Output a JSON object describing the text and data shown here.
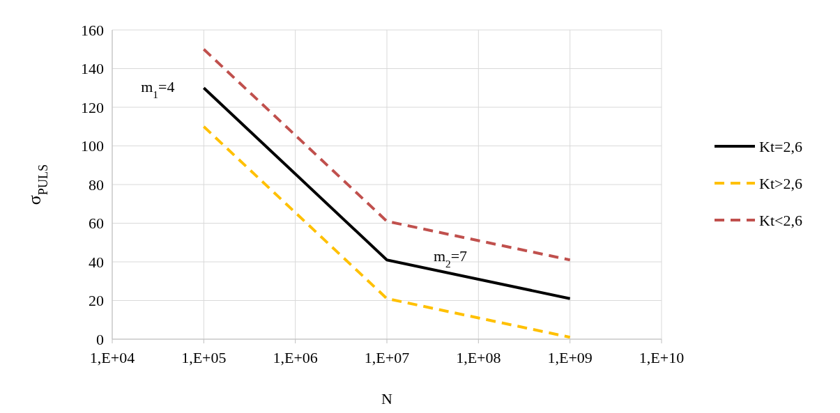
{
  "chart_data": {
    "type": "line",
    "xlabel": "N",
    "ylabel": "σ$_{PULS}$",
    "categories": [
      "1,E+04",
      "1,E+05",
      "1,E+06",
      "1,E+07",
      "1,E+08",
      "1,E+09",
      "1,E+10"
    ],
    "ylim": [
      0,
      160
    ],
    "yticks": [
      0,
      20,
      40,
      60,
      80,
      100,
      120,
      140,
      160
    ],
    "grid": true,
    "legend": "right",
    "series": [
      {
        "name": "Kt=2,6",
        "color": "#000000",
        "line_style": "solid",
        "values": [
          null,
          130,
          85.5,
          41,
          31,
          21,
          null
        ]
      },
      {
        "name": "Kt>2,6",
        "color": "#ffc000",
        "line_style": "dashed",
        "values": [
          null,
          110,
          65.5,
          21,
          11,
          1,
          null
        ]
      },
      {
        "name": "Kt<2,6",
        "color": "#c0504d",
        "line_style": "dashed",
        "values": [
          null,
          150,
          105.5,
          61,
          51,
          41,
          null
        ]
      }
    ],
    "annotations": [
      "m$_{1}$=4",
      "m$_{2}$=7"
    ]
  }
}
